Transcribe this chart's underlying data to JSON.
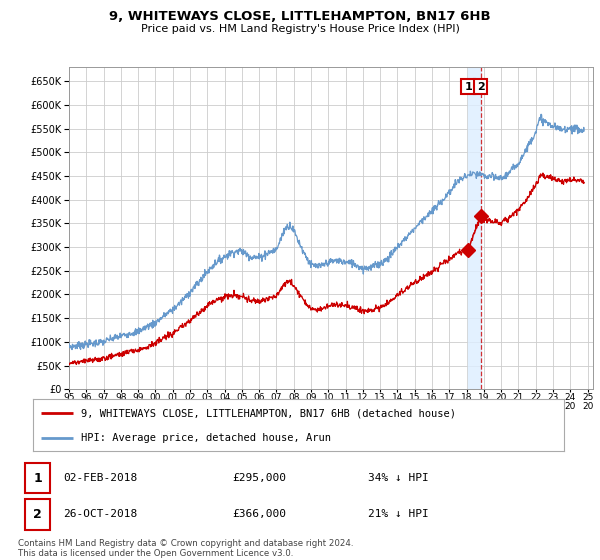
{
  "title": "9, WHITEWAYS CLOSE, LITTLEHAMPTON, BN17 6HB",
  "subtitle": "Price paid vs. HM Land Registry's House Price Index (HPI)",
  "legend_line1": "9, WHITEWAYS CLOSE, LITTLEHAMPTON, BN17 6HB (detached house)",
  "legend_line2": "HPI: Average price, detached house, Arun",
  "annotation1_date": "02-FEB-2018",
  "annotation1_price": "£295,000",
  "annotation1_pct": "34% ↓ HPI",
  "annotation2_date": "26-OCT-2018",
  "annotation2_price": "£366,000",
  "annotation2_pct": "21% ↓ HPI",
  "footer": "Contains HM Land Registry data © Crown copyright and database right 2024.\nThis data is licensed under the Open Government Licence v3.0.",
  "ylim": [
    0,
    680000
  ],
  "yticks": [
    0,
    50000,
    100000,
    150000,
    200000,
    250000,
    300000,
    350000,
    400000,
    450000,
    500000,
    550000,
    600000,
    650000
  ],
  "sale1_year": 2018.085,
  "sale1_price": 295000,
  "sale2_year": 2018.82,
  "sale2_price": 366000,
  "hpi_color": "#6699cc",
  "price_color": "#cc0000",
  "grid_color": "#cccccc",
  "shade_color": "#ddeeff",
  "background_color": "#ffffff"
}
